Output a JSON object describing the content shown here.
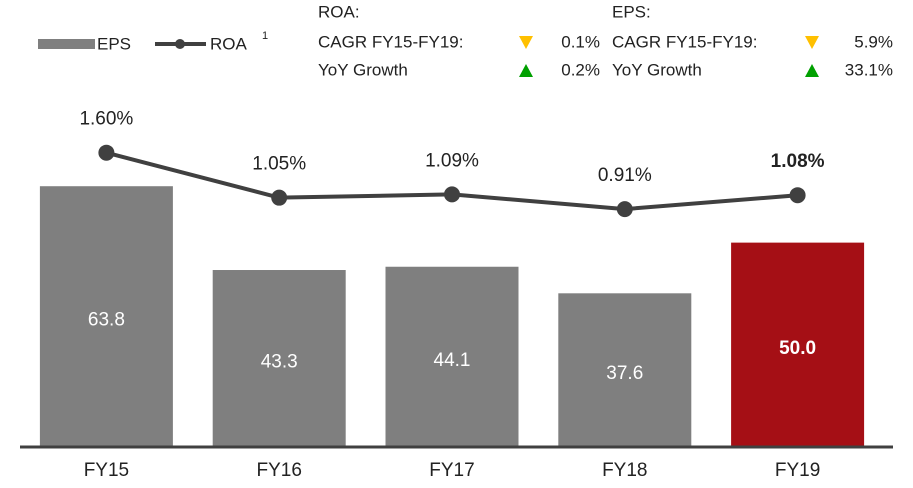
{
  "chart_data": {
    "type": "bar_line",
    "categories": [
      "FY15",
      "FY16",
      "FY17",
      "FY18",
      "FY19"
    ],
    "series": [
      {
        "name": "EPS",
        "type": "bar",
        "color": "#7f7f7f",
        "values": [
          63.8,
          43.3,
          44.1,
          37.6,
          50.0
        ],
        "value_labels": [
          "63.8",
          "43.3",
          "44.1",
          "37.6",
          "50.0"
        ]
      },
      {
        "name": "ROA",
        "footnote": "1",
        "type": "line",
        "axis": "y2",
        "color": "#404040",
        "values": [
          1.6,
          1.05,
          1.09,
          0.91,
          1.08
        ],
        "value_labels": [
          "1.60%",
          "1.05%",
          "1.09%",
          "0.91%",
          "1.08%"
        ]
      }
    ],
    "highlight": "FY19",
    "highlight_color": "#a50f15",
    "ylim": [
      0,
      80
    ],
    "y2lim": [
      -2,
      2
    ],
    "stats": [
      {
        "title": "ROA:",
        "rows": [
          {
            "label": "CAGR FY15-FY19:",
            "trend": "down",
            "value": "0.1%"
          },
          {
            "label": "YoY Growth",
            "trend": "up",
            "value": "0.2%"
          }
        ]
      },
      {
        "title": "EPS:",
        "rows": [
          {
            "label": "CAGR FY15-FY19:",
            "trend": "down",
            "value": "5.9%"
          },
          {
            "label": "YoY Growth",
            "trend": "up",
            "value": "33.1%"
          }
        ]
      }
    ]
  }
}
